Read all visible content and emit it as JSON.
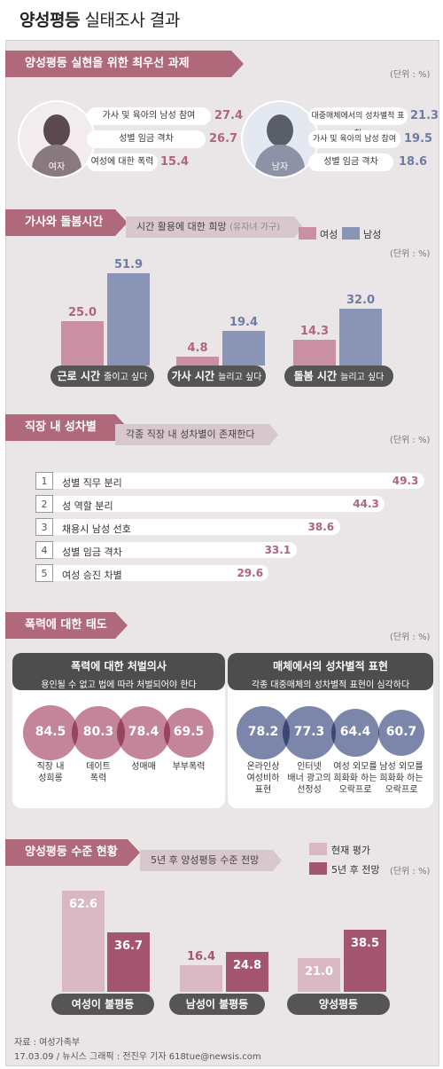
{
  "title_bold": "양성평등",
  "title_rest": "실태조사 결과",
  "colors": {
    "female": "#c98fa3",
    "male": "#8a95b6",
    "current": "#d9b8c4",
    "future": "#a4556f",
    "accent": "#b0697b"
  },
  "s1": {
    "ribbon": "양성평등 실현을 위한 최우선 과제",
    "unit": "(단위 : %)",
    "female_label": "여자",
    "male_label": "남자",
    "female": [
      {
        "label": "가사 및 육아의 남성 참여",
        "value": "27.4"
      },
      {
        "label": "성별 임금 격차",
        "value": "26.7"
      },
      {
        "label": "여성에 대한 폭력",
        "value": "15.4"
      }
    ],
    "male": [
      {
        "label": "대중매체에서의 성차별적 표현",
        "value": "21.3"
      },
      {
        "label": "가사 및 육아의 남성 참여",
        "value": "19.5"
      },
      {
        "label": "성별 임금 격차",
        "value": "18.6"
      }
    ]
  },
  "s2": {
    "ribbon": "가사와 돌봄시간",
    "sub": "시간 활용에 대한 희망",
    "sub_note": "(유자녀 가구)",
    "legend_female": "여성",
    "legend_male": "남성",
    "unit": "(단위 : %)",
    "groups": [
      {
        "label": "근로 시간",
        "sub": "줄이고 싶다",
        "female": "25.0",
        "male": "51.9"
      },
      {
        "label": "가사 시간",
        "sub": "늘리고 싶다",
        "female": "4.8",
        "male": "19.4"
      },
      {
        "label": "돌봄 시간",
        "sub": "늘리고 싶다",
        "female": "14.3",
        "male": "32.0"
      }
    ]
  },
  "s3": {
    "ribbon": "직장 내 성차별",
    "sub": "각종 직장 내 성차별이 존재한다",
    "unit": "(단위 : %)",
    "items": [
      {
        "num": "1",
        "label": "성별 직무 분리",
        "value": "49.3"
      },
      {
        "num": "2",
        "label": "성 역할 분리",
        "value": "44.3"
      },
      {
        "num": "3",
        "label": "채용시 남성 선호",
        "value": "38.6"
      },
      {
        "num": "4",
        "label": "성별 임금 격차",
        "value": "33.1"
      },
      {
        "num": "5",
        "label": "여성 승진 차별",
        "value": "29.6"
      }
    ]
  },
  "s4": {
    "ribbon": "폭력에 대한 태도",
    "unit": "(단위 : %)",
    "left": {
      "title": "폭력에 대한 처벌의사",
      "subtitle": "용인될 수 없고 법에 따라 처벌되어야 한다",
      "items": [
        {
          "value": "84.5",
          "label": "직장 내\n성희롱"
        },
        {
          "value": "80.3",
          "label": "데이트\n폭력"
        },
        {
          "value": "78.4",
          "label": "성매매"
        },
        {
          "value": "69.5",
          "label": "부부폭력"
        }
      ]
    },
    "right": {
      "title": "매체에서의 성차별적 표현",
      "subtitle": "각종 대중매체의 성차별적 표현이 심각하다",
      "items": [
        {
          "value": "78.2",
          "label": "온라인상\n여성비하\n표현"
        },
        {
          "value": "77.3",
          "label": "인터넷\n배너 광고의\n선정성"
        },
        {
          "value": "64.4",
          "label": "여성 외모를\n희화화 하는\n오락프로"
        },
        {
          "value": "60.7",
          "label": "남성 외모를\n희화화 하는\n오락프로"
        }
      ]
    }
  },
  "s5": {
    "ribbon": "양성평등 수준 현황",
    "sub": "5년 후 양성평등 수준 전망",
    "legend_current": "현재 평가",
    "legend_future": "5년 후 전망",
    "unit": "(단위 : %)",
    "groups": [
      {
        "label": "여성이 불평등",
        "current": "62.6",
        "future": "36.7"
      },
      {
        "label": "남성이 불평등",
        "current": "16.4",
        "future": "24.8"
      },
      {
        "label": "양성평등",
        "current": "21.0",
        "future": "38.5"
      }
    ]
  },
  "footer": {
    "source": "자료 : 여성가족부",
    "credit": "17.03.09 / 뉴시스 그래픽 : 전진우 기자 618tue@newsis.com"
  },
  "chart_data": [
    {
      "type": "bar",
      "title": "양성평등 실현을 위한 최우선 과제",
      "series": [
        {
          "name": "여자",
          "categories": [
            "가사 및 육아의 남성 참여",
            "성별 임금 격차",
            "여성에 대한 폭력"
          ],
          "values": [
            27.4,
            26.7,
            15.4
          ]
        },
        {
          "name": "남자",
          "categories": [
            "대중매체에서의 성차별적 표현",
            "가사 및 육아의 남성 참여",
            "성별 임금 격차"
          ],
          "values": [
            21.3,
            19.5,
            18.6
          ]
        }
      ]
    },
    {
      "type": "bar",
      "title": "가사와 돌봄시간",
      "categories": [
        "근로 시간 줄이고 싶다",
        "가사 시간 늘리고 싶다",
        "돌봄 시간 늘리고 싶다"
      ],
      "series": [
        {
          "name": "여성",
          "values": [
            25.0,
            4.8,
            14.3
          ]
        },
        {
          "name": "남성",
          "values": [
            51.9,
            19.4,
            32.0
          ]
        }
      ],
      "ylim": [
        0,
        60
      ]
    },
    {
      "type": "bar",
      "title": "직장 내 성차별",
      "categories": [
        "성별 직무 분리",
        "성 역할 분리",
        "채용시 남성 선호",
        "성별 임금 격차",
        "여성 승진 차별"
      ],
      "values": [
        49.3,
        44.3,
        38.6,
        33.1,
        29.6
      ]
    },
    {
      "type": "bar",
      "title": "폭력에 대한 처벌의사",
      "categories": [
        "직장 내 성희롱",
        "데이트 폭력",
        "성매매",
        "부부폭력"
      ],
      "values": [
        84.5,
        80.3,
        78.4,
        69.5
      ]
    },
    {
      "type": "bar",
      "title": "매체에서의 성차별적 표현",
      "categories": [
        "온라인상 여성비하 표현",
        "인터넷 배너 광고의 선정성",
        "여성 외모를 희화화 하는 오락프로",
        "남성 외모를 희화화 하는 오락프로"
      ],
      "values": [
        78.2,
        77.3,
        64.4,
        60.7
      ]
    },
    {
      "type": "bar",
      "title": "양성평등 수준 현황",
      "categories": [
        "여성이 불평등",
        "남성이 불평등",
        "양성평등"
      ],
      "series": [
        {
          "name": "현재 평가",
          "values": [
            62.6,
            16.4,
            21.0
          ]
        },
        {
          "name": "5년 후 전망",
          "values": [
            36.7,
            24.8,
            38.5
          ]
        }
      ],
      "ylim": [
        0,
        70
      ]
    }
  ]
}
